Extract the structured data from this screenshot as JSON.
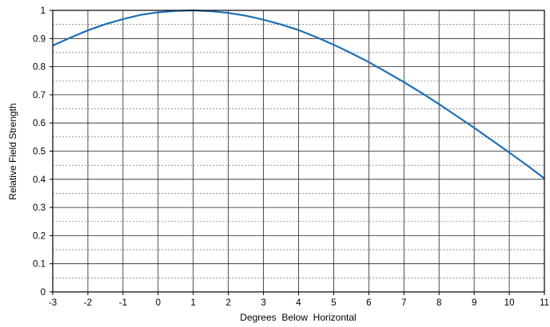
{
  "chart_data": {
    "type": "line",
    "xlabel": "Degrees  Below  Horizontal",
    "ylabel": "Relative Field Strength",
    "xlim": [
      -3,
      11
    ],
    "ylim": [
      0,
      1
    ],
    "x_ticks": [
      -3,
      -2,
      -1,
      0,
      1,
      2,
      3,
      4,
      5,
      6,
      7,
      8,
      9,
      10,
      11
    ],
    "y_ticks": [
      0,
      0.1,
      0.2,
      0.3,
      0.4,
      0.5,
      0.6,
      0.7,
      0.8,
      0.9,
      1
    ],
    "x_tick_labels": [
      "-3",
      "-2",
      "-1",
      "0",
      "1",
      "2",
      "3",
      "4",
      "5",
      "6",
      "7",
      "8",
      "9",
      "10",
      "11"
    ],
    "y_tick_labels": [
      "0",
      "0.1",
      "0.2",
      "0.3",
      "0.4",
      "0.5",
      "0.6",
      "0.7",
      "0.8",
      "0.9",
      "1"
    ],
    "grid": true,
    "minor_y_grid": "dashed",
    "series": [
      {
        "color": "#1f6fb5",
        "x": [
          -3,
          -2.5,
          -2,
          -1.5,
          -1,
          -0.5,
          0,
          0.5,
          1,
          1.5,
          2,
          2.5,
          3,
          3.5,
          4,
          4.5,
          5,
          5.5,
          6,
          6.5,
          7,
          7.5,
          8,
          8.5,
          9,
          9.5,
          10,
          10.5,
          11
        ],
        "y": [
          0.875,
          0.903,
          0.929,
          0.951,
          0.969,
          0.984,
          0.993,
          0.998,
          1.0,
          0.997,
          0.991,
          0.981,
          0.967,
          0.95,
          0.93,
          0.905,
          0.878,
          0.848,
          0.816,
          0.781,
          0.745,
          0.707,
          0.667,
          0.625,
          0.583,
          0.539,
          0.495,
          0.45,
          0.403
        ]
      }
    ]
  }
}
